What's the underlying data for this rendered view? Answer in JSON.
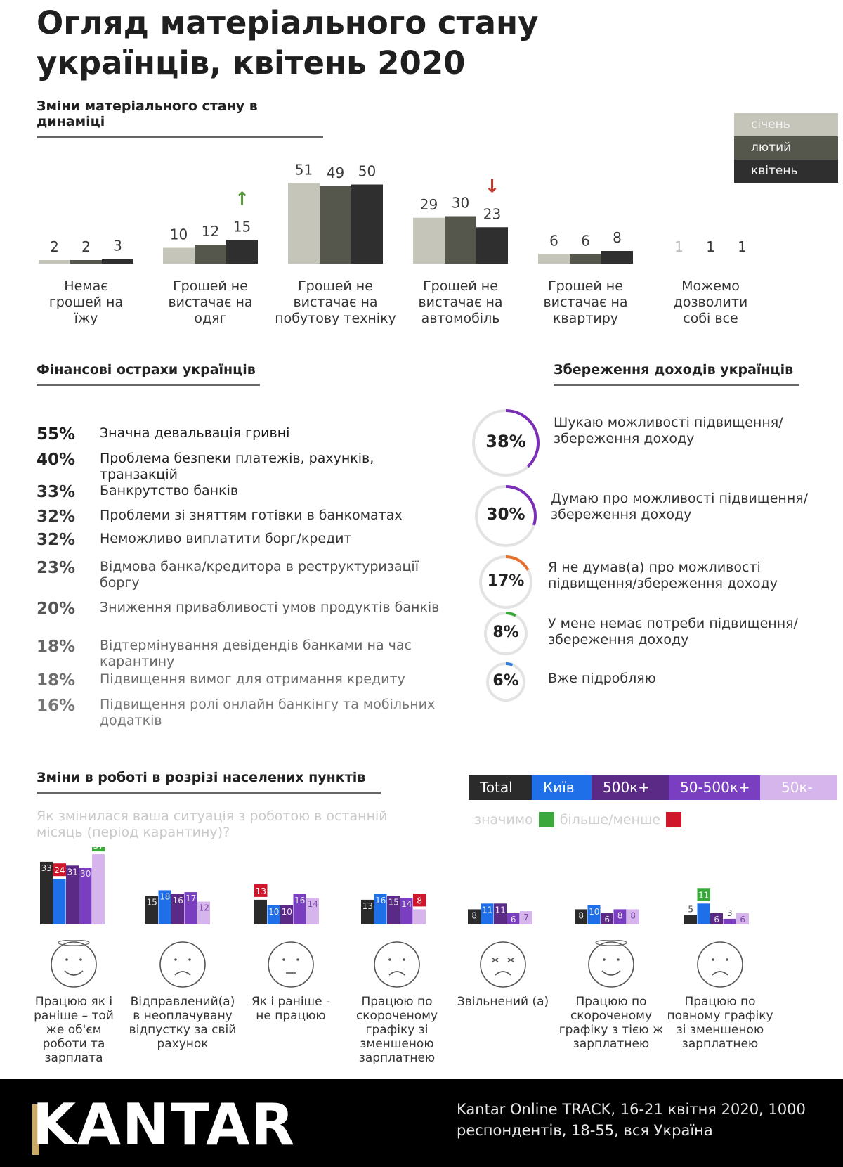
{
  "title": "Огляд матеріального стану українців, квітень 2020",
  "section1": {
    "heading": "Зміни матеріального стану в динаміці"
  },
  "legend": {
    "items": [
      {
        "label": "січень",
        "color": "#c5c6b9"
      },
      {
        "label": "лютий",
        "color": "#55574c"
      },
      {
        "label": "квітень",
        "color": "#2f2f2f"
      }
    ]
  },
  "chart_data": [
    {
      "type": "bar",
      "title": "Зміни матеріального стану в динаміці",
      "categories": [
        "Немає грошей на їжу",
        "Грошей не вистачає на одяг",
        "Грошей не вистачає на побутову техніку",
        "Грошей не вистачає на автомобіль",
        "Грошей не вистачає на квартиру",
        "Можемо дозволити собі все"
      ],
      "category_lines": [
        [
          "Немає",
          "грошей на",
          "їжу"
        ],
        [
          "Грошей не",
          "вистачає на",
          "одяг"
        ],
        [
          "Грошей не",
          "вистачає на",
          "побутову техніку"
        ],
        [
          "Грошей не",
          "вистачає на",
          "автомобіль"
        ],
        [
          "Грошей не",
          "вистачає на",
          "квартиру"
        ],
        [
          "Можемо",
          "дозволити",
          "собі все"
        ]
      ],
      "series": [
        {
          "name": "січень",
          "values": [
            2,
            10,
            51,
            29,
            6,
            1
          ]
        },
        {
          "name": "лютий",
          "values": [
            2,
            12,
            49,
            30,
            6,
            1
          ]
        },
        {
          "name": "квітень",
          "values": [
            3,
            15,
            50,
            23,
            8,
            1
          ]
        }
      ],
      "colors": [
        "#c5c6b9",
        "#55574c",
        "#2f2f2f"
      ],
      "arrows": [
        {
          "category_index": 1,
          "direction": "up",
          "symbol": "↑",
          "color": "#5a9a3c"
        },
        {
          "category_index": 3,
          "direction": "down",
          "symbol": "↓",
          "color": "#c0392b"
        }
      ],
      "legend": "top-right",
      "grid": false
    },
    {
      "type": "bar",
      "title": "Зміни в роботі в розрізі населених пунктів",
      "categories": [
        "Працюю як і раніше – той же об'єм роботи та зарплата",
        "Відправлений(а) в неоплачувану відпустку за свій рахунок",
        "Як і раніше - не працюю",
        "Працюю по скороченому графіку зі зменшеною зарплатнею",
        "Звільнений (а)",
        "Працюю по скороченому графіку з тією ж зарплатнею",
        "Працюю по повному графіку зі зменшеною зарплатнею"
      ],
      "category_lines": [
        [
          "Працюю як і",
          "раніше – той",
          "же об'єм",
          "роботи та",
          "зарплата"
        ],
        [
          "Відправлений(а)",
          "в неоплачувану",
          "відпустку за свій",
          "рахунок"
        ],
        [
          "Як і раніше -",
          "не працюю"
        ],
        [
          "Працюю по",
          "скороченому",
          "графіку зі",
          "зменшеною",
          "зарплатнею"
        ],
        [
          "Звільнений (а)"
        ],
        [
          "Працюю по",
          "скороченому",
          "графіку з тією ж",
          "зарплатнею"
        ],
        [
          "Працюю по",
          "повному графіку",
          "зі зменшеною",
          "зарплатнею"
        ]
      ],
      "faces": [
        "happy",
        "sad",
        "neutral",
        "sad",
        "angry",
        "happy",
        "sad"
      ],
      "series": [
        {
          "name": "Total",
          "values": [
            33,
            15,
            13,
            13,
            8,
            8,
            5
          ]
        },
        {
          "name": "Київ",
          "values": [
            24,
            18,
            10,
            16,
            11,
            10,
            11
          ]
        },
        {
          "name": "500к+",
          "values": [
            31,
            16,
            10,
            15,
            11,
            6,
            6
          ]
        },
        {
          "name": "50-500к+",
          "values": [
            30,
            17,
            16,
            14,
            6,
            8,
            3
          ]
        },
        {
          "name": "50к-",
          "values": [
            37,
            12,
            14,
            8,
            7,
            8,
            6
          ]
        }
      ],
      "colors": [
        "#2b2b2b",
        "#1e6fe8",
        "#5b2a86",
        "#7a3fc0",
        "#d6b4ec"
      ],
      "significant": [
        {
          "category_index": 0,
          "series_index": 1,
          "flag": "less"
        },
        {
          "category_index": 0,
          "series_index": 4,
          "flag": "more"
        },
        {
          "category_index": 2,
          "series_index": 0,
          "flag": "less"
        },
        {
          "category_index": 3,
          "series_index": 4,
          "flag": "less"
        },
        {
          "category_index": 6,
          "series_index": 1,
          "flag": "more"
        }
      ],
      "legend": "top-right",
      "grid": false
    }
  ],
  "fears": {
    "heading": "Фінансові острахи українців",
    "items": [
      {
        "pct": "55%",
        "text": "Значна девальвація гривні",
        "color": "#1a1a1a"
      },
      {
        "pct": "40%",
        "text": "Проблема безпеки платежів, рахунків, транзакцій",
        "color": "#222222"
      },
      {
        "pct": "33%",
        "text": "Банкрутство банків",
        "color": "#2a2a2a"
      },
      {
        "pct": "32%",
        "text": "Проблеми зі зняттям готівки в банкоматах",
        "color": "#333333"
      },
      {
        "pct": "32%",
        "text": "Неможливо виплатити борг/кредит",
        "color": "#333333"
      },
      {
        "pct": "23%",
        "text": "Відмова банка/кредитора в реструктуризації боргу",
        "color": "#4a4a4a"
      },
      {
        "pct": "20%",
        "text": "Зниження привабливості умов продуктів банків",
        "color": "#555555"
      },
      {
        "pct": "18%",
        "text": "Відтермінування девідендів банками на час карантину",
        "color": "#666666"
      },
      {
        "pct": "18%",
        "text": "Підвищення вимог для отримання кредиту",
        "color": "#6e6e6e"
      },
      {
        "pct": "16%",
        "text": "Підвищення ролі онлайн банкінгу та мобільних додатків",
        "color": "#777777"
      }
    ]
  },
  "savings": {
    "heading": "Збереження доходів українців",
    "items": [
      {
        "pct": "38%",
        "value": 38,
        "text": "Шукаю можливості підвищення/ збереження доходу",
        "color": "#7b2fb8"
      },
      {
        "pct": "30%",
        "value": 30,
        "text": "Думаю про можливості підвищення/збереження доходу",
        "color": "#7b2fb8"
      },
      {
        "pct": "17%",
        "value": 17,
        "text": "Я не думав(а) про можливості підвищення/збереження доходу",
        "color": "#e8702a"
      },
      {
        "pct": "8%",
        "value": 8,
        "text": "У мене немає потреби підвищення/збереження доходу",
        "color": "#3aa83a"
      },
      {
        "pct": "6%",
        "value": 6,
        "text": "Вже підробляю",
        "color": "#2f7de1"
      }
    ]
  },
  "work": {
    "heading": "Зміни в роботі в розрізі населених пунктів",
    "subtitle": "Як змінилася ваша ситуація з роботою в останній місяць (період карантину)?",
    "segments": [
      {
        "label": "Total",
        "color": "#2b2b2b"
      },
      {
        "label": "Київ",
        "color": "#1e6fe8"
      },
      {
        "label": "500к+",
        "color": "#5b2a86"
      },
      {
        "label": "50-500к+",
        "color": "#7a3fc0"
      },
      {
        "label": "50к-",
        "color": "#d6b4ec"
      }
    ],
    "significance": {
      "prefix": "значимо",
      "label": "більше/менше",
      "more_color": "#3aa83a",
      "less_color": "#d0162a"
    }
  },
  "footer": {
    "logo": "KANTAR",
    "source": "Kantar Online TRACK, 16-21 квітня 2020, 1000 респондентів, 18-55, вся Україна"
  }
}
